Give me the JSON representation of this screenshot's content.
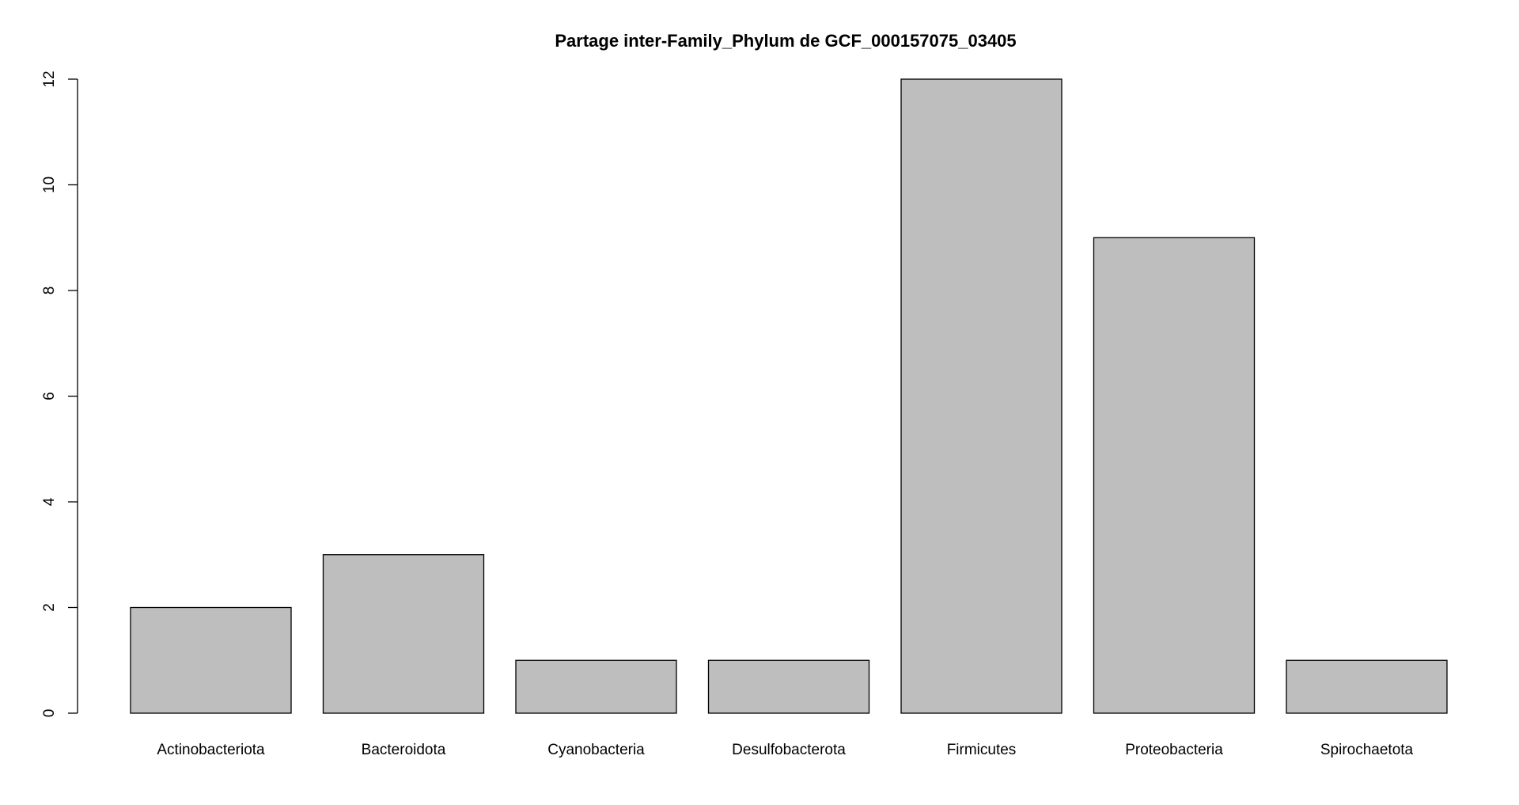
{
  "chart_data": {
    "type": "bar",
    "title": "Partage inter-Family_Phylum de GCF_000157075_03405",
    "xlabel": "",
    "ylabel": "",
    "categories": [
      "Actinobacteriota",
      "Bacteroidota",
      "Cyanobacteria",
      "Desulfobacterota",
      "Firmicutes",
      "Proteobacteria",
      "Spirochaetota"
    ],
    "values": [
      2,
      3,
      1,
      1,
      12,
      9,
      1
    ],
    "ylim": [
      0,
      12
    ],
    "yticks": [
      0,
      2,
      4,
      6,
      8,
      10,
      12
    ],
    "ytick_labels": [
      "0",
      "2",
      "4",
      "6",
      "8",
      "10",
      "12"
    ],
    "grid": false,
    "legend": "none",
    "colors": {
      "bar_fill": "#bebebe",
      "bar_stroke": "#000000",
      "background": "#ffffff"
    }
  }
}
